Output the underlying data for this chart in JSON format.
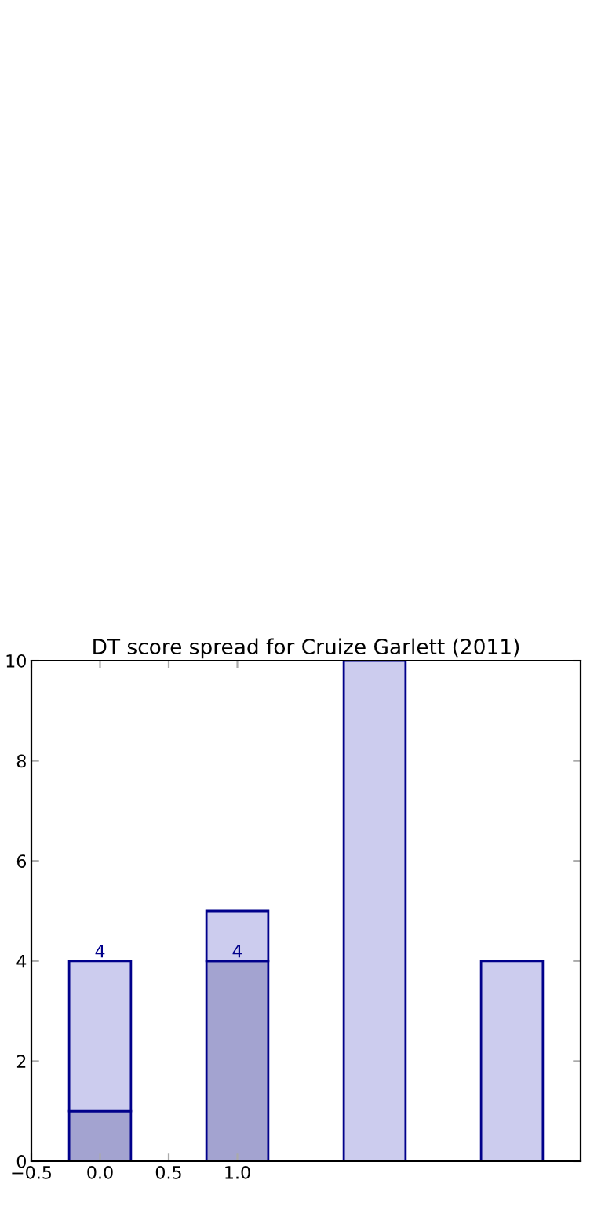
{
  "chart_data": {
    "type": "bar",
    "title": "DT score spread for Cruize Garlett (2011)",
    "x": [
      0,
      1,
      2,
      3
    ],
    "series": [
      {
        "color": "#a3a3d0",
        "values": [
          1,
          4,
          null,
          null
        ]
      },
      {
        "color": "#ccccee",
        "values": [
          3,
          1,
          10,
          4
        ]
      }
    ],
    "stacked": true,
    "xlim": [
      -0.5,
      3.5
    ],
    "xticks": [
      -0.5,
      {
        "value": 0,
        "label": "0.0"
      },
      0.5,
      {
        "value": 1,
        "label": "1.0"
      }
    ],
    "ylim": [
      0,
      10
    ],
    "yticks": [
      0,
      2,
      4,
      6,
      8,
      10
    ],
    "annotations": [
      {
        "text": "4",
        "x": 0,
        "y": 4
      },
      {
        "text": "4",
        "x": 1,
        "y": 4
      }
    ],
    "grid": false
  }
}
